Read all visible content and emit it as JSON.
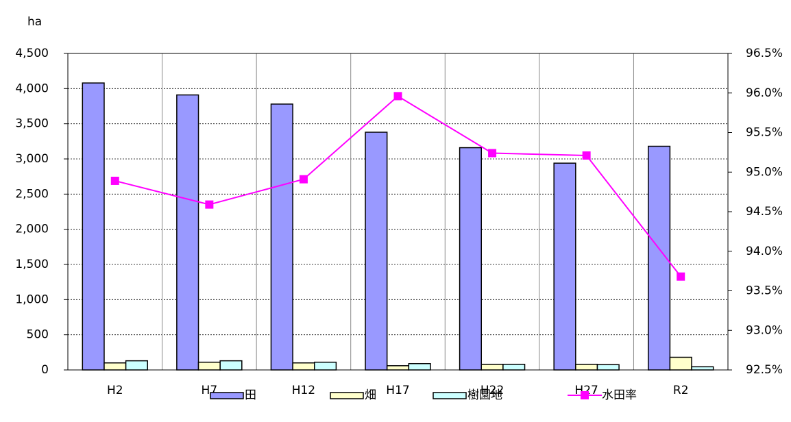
{
  "chart_data": {
    "type": "bar_line",
    "ylabel": "ha",
    "categories": [
      "H2",
      "H7",
      "H12",
      "H17",
      "H22",
      "H27",
      "R2"
    ],
    "series": [
      {
        "name": "田",
        "color": "#9999ff",
        "values": [
          4080,
          3910,
          3780,
          3380,
          3160,
          2940,
          3180
        ]
      },
      {
        "name": "畑",
        "color": "#ffffcc",
        "values": [
          100,
          110,
          100,
          60,
          80,
          80,
          180
        ]
      },
      {
        "name": "樹園地",
        "color": "#ccffff",
        "values": [
          130,
          130,
          110,
          90,
          80,
          75,
          45
        ]
      },
      {
        "name": "水田率",
        "color": "#ff00ff",
        "axis": "y2",
        "values": [
          94.89,
          94.59,
          94.91,
          95.96,
          95.24,
          95.21,
          93.68
        ]
      }
    ],
    "ylim": [
      0,
      4500
    ],
    "yticks": [
      0,
      500,
      {
        "value": 1000,
        "label": "1,000"
      },
      {
        "value": 1500,
        "label": "1,500"
      },
      {
        "value": 2000,
        "label": "2,000"
      },
      {
        "value": 2500,
        "label": "2,500"
      },
      {
        "value": 3000,
        "label": "3,000"
      },
      {
        "value": 3500,
        "label": "3,500"
      },
      {
        "value": 4000,
        "label": "4,000"
      },
      {
        "value": 4500,
        "label": "4,500"
      }
    ],
    "y2lim": [
      92.5,
      96.5
    ],
    "y2ticks": [
      {
        "value": 92.5,
        "label": "92.5%"
      },
      {
        "value": 93.0,
        "label": "93.0%"
      },
      {
        "value": 93.5,
        "label": "93.5%"
      },
      {
        "value": 94.0,
        "label": "94.0%"
      },
      {
        "value": 94.5,
        "label": "94.5%"
      },
      {
        "value": 95.0,
        "label": "95.0%"
      },
      {
        "value": 95.5,
        "label": "95.5%"
      },
      {
        "value": 96.0,
        "label": "96.0%"
      },
      {
        "value": 96.5,
        "label": "96.5%"
      }
    ],
    "grid": true
  }
}
